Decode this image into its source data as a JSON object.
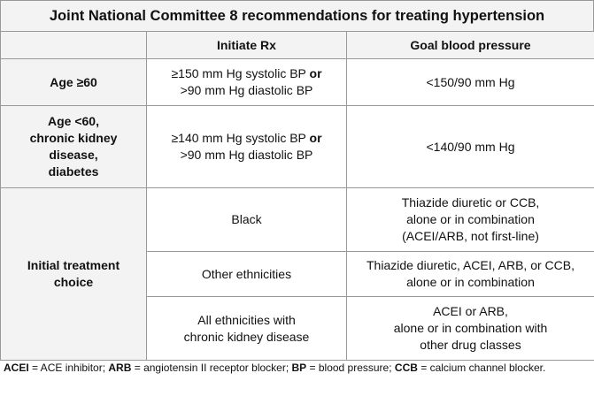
{
  "title": "Joint National Committee 8 recommendations for treating hypertension",
  "header": {
    "col1": "",
    "col2": "Initiate Rx",
    "col3": "Goal blood pressure"
  },
  "rows": {
    "age60": {
      "label": "Age ≥60",
      "initiate_sys": "≥150 mm Hg systolic BP ",
      "or": "or",
      "initiate_dia": ">90 mm Hg diastolic BP",
      "goal": "<150/90 mm Hg"
    },
    "age_lt60": {
      "label_lines": [
        "Age <60,",
        "chronic kidney",
        "disease,",
        "diabetes"
      ],
      "initiate_sys": "≥140 mm Hg systolic BP ",
      "or": "or",
      "initiate_dia": ">90 mm Hg diastolic BP",
      "goal": "<140/90 mm Hg"
    },
    "initial": {
      "label_lines": [
        "Initial treatment",
        "choice"
      ],
      "sub": [
        {
          "group": "Black",
          "goal_lines": [
            "Thiazide diuretic or CCB,",
            "alone or in combination",
            "(ACEI/ARB, not first-line)"
          ]
        },
        {
          "group": "Other ethnicities",
          "goal_lines": [
            "Thiazide diuretic, ACEI, ARB, or CCB,",
            "alone or in combination"
          ]
        },
        {
          "group_lines": [
            "All ethnicities with",
            "chronic kidney disease"
          ],
          "goal_lines": [
            "ACEI or ARB,",
            "alone or in combination with",
            "other drug classes"
          ]
        }
      ]
    }
  },
  "footnote": {
    "t1b": "ACEI",
    "t1": " = ACE inhibitor; ",
    "t2b": "ARB",
    "t2": " = angiotensin II receptor blocker; ",
    "t3b": "BP",
    "t3": " = blood pressure; ",
    "t4b": "CCB",
    "t4": " = calcium channel blocker."
  }
}
